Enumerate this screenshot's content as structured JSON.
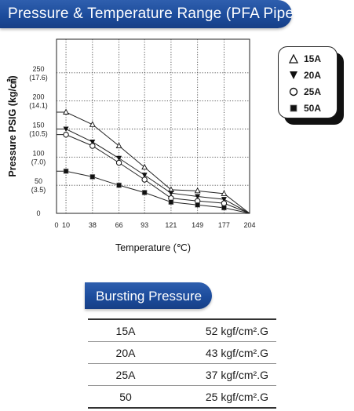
{
  "header": {
    "title": "Pressure & Temperature Range (PFA Pipe)"
  },
  "chart_data": {
    "type": "line",
    "ylabel": "Pressure PSIG (kg/㎠)",
    "xlabel": "Temperature (℃)",
    "x_ticks": [
      "0",
      "10",
      "38",
      "66",
      "93",
      "121",
      "149",
      "177",
      "204"
    ],
    "x_tick_values": [
      0,
      10,
      38,
      66,
      93,
      121,
      149,
      177,
      204
    ],
    "y_ticks": [
      {
        "value": 0,
        "psig": "0",
        "kg": ""
      },
      {
        "value": 50,
        "psig": "50",
        "kg": "(3.5)"
      },
      {
        "value": 100,
        "psig": "100",
        "kg": "(7.0)"
      },
      {
        "value": 150,
        "psig": "150",
        "kg": "(10.5)"
      },
      {
        "value": 200,
        "psig": "200",
        "kg": "(14.1)"
      },
      {
        "value": 250,
        "psig": "250",
        "kg": "(17.6)"
      }
    ],
    "xlim": [
      0,
      204
    ],
    "ylim": [
      0,
      300
    ],
    "grid": true,
    "legend_position": "top-right",
    "series": [
      {
        "name": "15A",
        "marker": "triangle-open",
        "x": [
          0,
          10,
          38,
          66,
          93,
          121,
          149,
          177,
          204
        ],
        "y": [
          180,
          180,
          158,
          120,
          82,
          42,
          40,
          35,
          0
        ]
      },
      {
        "name": "20A",
        "marker": "triangle-filled",
        "x": [
          0,
          10,
          38,
          66,
          93,
          121,
          149,
          177,
          204
        ],
        "y": [
          150,
          150,
          127,
          98,
          68,
          36,
          30,
          25,
          0
        ]
      },
      {
        "name": "25A",
        "marker": "circle-open",
        "x": [
          0,
          10,
          38,
          66,
          93,
          121,
          149,
          177,
          204
        ],
        "y": [
          140,
          140,
          120,
          90,
          60,
          27,
          22,
          18,
          0
        ]
      },
      {
        "name": "50A",
        "marker": "square-filled",
        "x": [
          0,
          10,
          38,
          66,
          93,
          121,
          149,
          177,
          204
        ],
        "y": [
          75,
          75,
          65,
          50,
          37,
          20,
          15,
          10,
          0
        ]
      }
    ]
  },
  "bursting": {
    "title": "Bursting Pressure",
    "rows": [
      {
        "size": "15A",
        "pressure": "52 kgf/cm².G"
      },
      {
        "size": "20A",
        "pressure": "43 kgf/cm².G"
      },
      {
        "size": "25A",
        "pressure": "37 kgf/cm².G"
      },
      {
        "size": "50",
        "pressure": "25 kgf/cm².G"
      }
    ]
  }
}
